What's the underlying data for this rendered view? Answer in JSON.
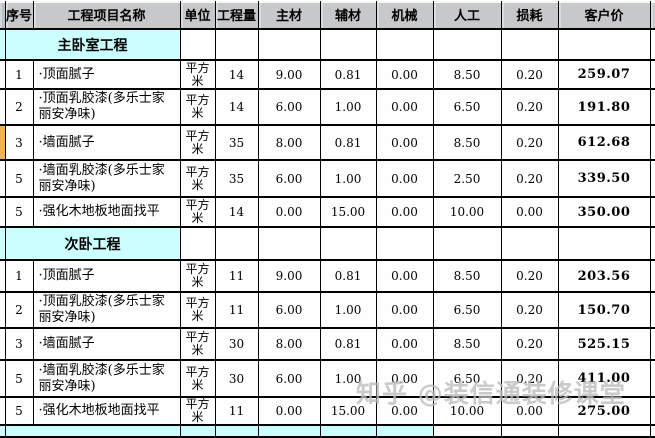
{
  "header": {
    "columns": [
      "序号",
      "工程项目名称",
      "单位",
      "工程量",
      "主材",
      "辅材",
      "机械",
      "人工",
      "损耗",
      "客户价"
    ]
  },
  "sections": [
    {
      "title": "主卧室工程",
      "rows": [
        {
          "no": "1",
          "name": "·顶面腻子",
          "unit": "平方米",
          "qty": "14",
          "main": "9.00",
          "aux": "0.81",
          "mach": "0.00",
          "labor": "8.50",
          "loss": "0.20",
          "price": "259.07"
        },
        {
          "no": "2",
          "name": "·顶面乳胶漆(多乐士家丽安净味)",
          "unit": "平方米",
          "qty": "14",
          "main": "6.00",
          "aux": "1.00",
          "mach": "0.00",
          "labor": "6.50",
          "loss": "0.20",
          "price": "191.80"
        },
        {
          "no": "3",
          "name": "·墙面腻子",
          "unit": "平方米",
          "qty": "35",
          "main": "8.00",
          "aux": "0.81",
          "mach": "0.00",
          "labor": "8.50",
          "loss": "0.20",
          "price": "612.68",
          "marker": true
        },
        {
          "no": "5",
          "name": "·墙面乳胶漆(多乐士家丽安净味)",
          "unit": "平方米",
          "qty": "35",
          "main": "6.00",
          "aux": "1.00",
          "mach": "0.00",
          "labor": "2.50",
          "loss": "0.20",
          "price": "339.50"
        },
        {
          "no": "5",
          "name": "·强化木地板地面找平",
          "unit": "平方米",
          "qty": "14",
          "main": "0.00",
          "aux": "15.00",
          "mach": "0.00",
          "labor": "10.00",
          "loss": "0.00",
          "price": "350.00"
        }
      ]
    },
    {
      "title": "次卧工程",
      "rows": [
        {
          "no": "1",
          "name": "·顶面腻子",
          "unit": "平方米",
          "qty": "11",
          "main": "9.00",
          "aux": "0.81",
          "mach": "0.00",
          "labor": "8.50",
          "loss": "0.20",
          "price": "203.56"
        },
        {
          "no": "2",
          "name": "·顶面乳胶漆(多乐士家丽安净味)",
          "unit": "平方米",
          "qty": "11",
          "main": "6.00",
          "aux": "1.00",
          "mach": "0.00",
          "labor": "6.50",
          "loss": "0.20",
          "price": "150.70"
        },
        {
          "no": "3",
          "name": "·墙面腻子",
          "unit": "平方米",
          "qty": "30",
          "main": "8.00",
          "aux": "0.81",
          "mach": "0.00",
          "labor": "8.50",
          "loss": "0.20",
          "price": "525.15"
        },
        {
          "no": "5",
          "name": "·墙面乳胶漆(多乐士家丽安净味)",
          "unit": "平方米",
          "qty": "30",
          "main": "6.00",
          "aux": "1.00",
          "mach": "0.00",
          "labor": "6.50",
          "loss": "0.20",
          "price": "411.00"
        },
        {
          "no": "5",
          "name": "·强化木地板地面找平",
          "unit": "平方米",
          "qty": "11",
          "main": "0.00",
          "aux": "15.00",
          "mach": "0.00",
          "labor": "10.00",
          "loss": "0.00",
          "price": "275.00"
        }
      ]
    }
  ],
  "watermark": {
    "text": "知乎 @装信通装修课堂"
  },
  "colors": {
    "header_bg": "#c7c8ca",
    "section_bg": "#ccffff",
    "marker_bg": "#f0b35c",
    "border": "#000000",
    "watermark": "#bcbcbc"
  }
}
